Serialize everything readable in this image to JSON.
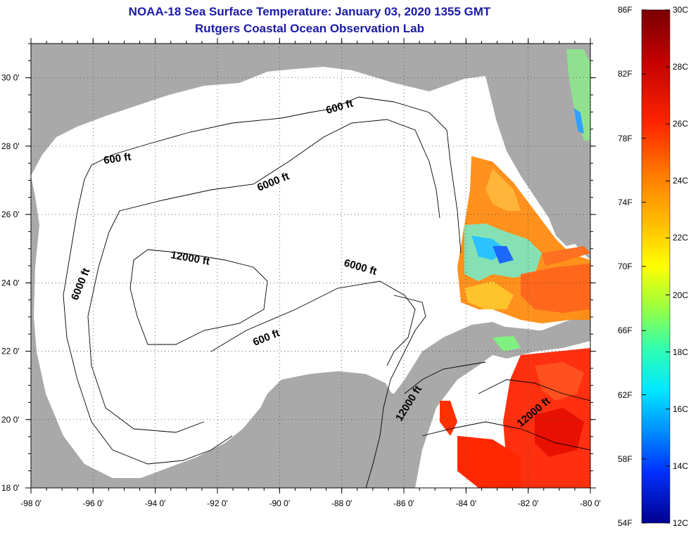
{
  "header": {
    "title": "NOAA-18 Sea Surface Temperature:  January 03, 2020 1355 GMT",
    "subtitle": "Rutgers Coastal Ocean Observation Lab"
  },
  "axes": {
    "lon_ticks": [
      "-98 0'",
      "-96 0'",
      "-94 0'",
      "-92 0'",
      "-90 0'",
      "-88 0'",
      "-86 0'",
      "-84 0'",
      "-82 0'",
      "-80 0'"
    ],
    "lat_ticks": [
      "30 0'",
      "28 0'",
      "26 0'",
      "24 0'",
      "22 0'",
      "20 0'",
      "18 0'"
    ],
    "lon_range": [
      -98,
      -80
    ],
    "lat_range": [
      18,
      31
    ]
  },
  "contours": [
    {
      "label": "600 ft",
      "name": "contour-label-600ft-north"
    },
    {
      "label": "600 ft",
      "name": "contour-label-600ft-west"
    },
    {
      "label": "6000 ft",
      "name": "contour-label-6000ft-north"
    },
    {
      "label": "6000 ft",
      "name": "contour-label-6000ft-west"
    },
    {
      "label": "12000 ft",
      "name": "contour-label-12000ft-center"
    },
    {
      "label": "6000 ft",
      "name": "contour-label-6000ft-east"
    },
    {
      "label": "600 ft",
      "name": "contour-label-600ft-south"
    },
    {
      "label": "12000 ft",
      "name": "contour-label-12000ft-caribbean"
    },
    {
      "label": "12000 ft",
      "name": "contour-label-12000ft-east"
    }
  ],
  "colorbar": {
    "fahrenheit": [
      "86F",
      "82F",
      "78F",
      "74F",
      "70F",
      "66F",
      "62F",
      "58F",
      "54F"
    ],
    "celsius": [
      "30C",
      "28C",
      "26C",
      "24C",
      "22C",
      "20C",
      "18C",
      "16C",
      "14C",
      "12C"
    ],
    "range_c": [
      12,
      30
    ],
    "range_f": [
      54,
      86
    ]
  },
  "colors": {
    "land": "#a9a9a9",
    "ocean": "#ffffff",
    "title": "#1a1aa8",
    "grid": "#444444"
  }
}
